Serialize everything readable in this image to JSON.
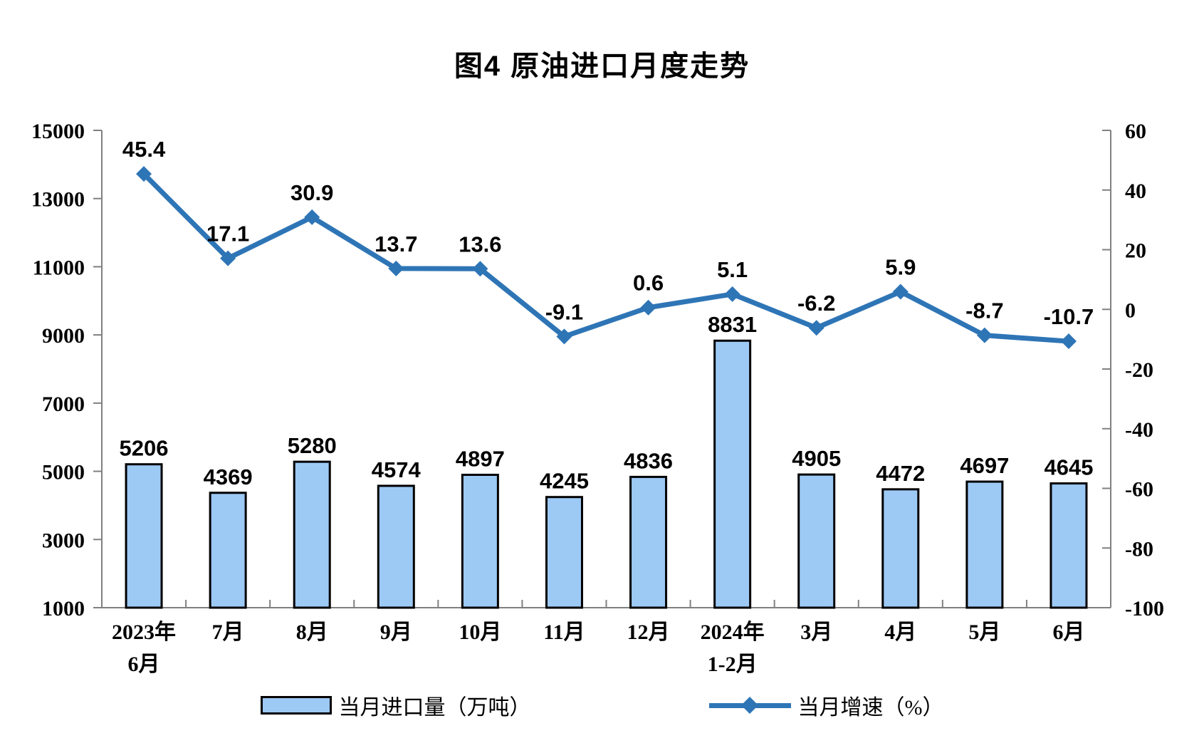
{
  "title": "图4 原油进口月度走势",
  "chart_data": {
    "type": "bar+line combo, dual y-axes",
    "categories": [
      [
        "2023年",
        "6月"
      ],
      [
        "7月"
      ],
      [
        "8月"
      ],
      [
        "9月"
      ],
      [
        "10月"
      ],
      [
        "11月"
      ],
      [
        "12月"
      ],
      [
        "2024年",
        "1-2月"
      ],
      [
        "3月"
      ],
      [
        "4月"
      ],
      [
        "5月"
      ],
      [
        "6月"
      ]
    ],
    "series": [
      {
        "name": "当月进口量（万吨）",
        "type": "bar",
        "axis": "left",
        "values": [
          5206,
          4369,
          5280,
          4574,
          4897,
          4245,
          4836,
          8831,
          4905,
          4472,
          4697,
          4645
        ],
        "fill": "#9DC9F5",
        "stroke": "#000000"
      },
      {
        "name": "当月增速（%）",
        "type": "line",
        "axis": "right",
        "marker": "diamond",
        "values": [
          45.4,
          17.1,
          30.9,
          13.7,
          13.6,
          -9.1,
          0.6,
          5.1,
          -6.2,
          5.9,
          -8.7,
          -10.7
        ],
        "color": "#2E75B6"
      }
    ],
    "left_axis": {
      "min": 1000,
      "max": 15000,
      "step": 2000,
      "ticks": [
        15000,
        13000,
        11000,
        9000,
        7000,
        5000,
        3000,
        1000
      ]
    },
    "right_axis": {
      "min": -100,
      "max": 60,
      "step": 20,
      "ticks": [
        60,
        40,
        20,
        0,
        -20,
        -40,
        -60,
        -80,
        -100
      ]
    },
    "grid": false,
    "legend_position": "bottom"
  },
  "colors": {
    "axis_line": "#808080",
    "text": "#000000",
    "bar_fill": "#9DC9F5",
    "bar_stroke": "#000000",
    "line": "#2E75B6"
  }
}
